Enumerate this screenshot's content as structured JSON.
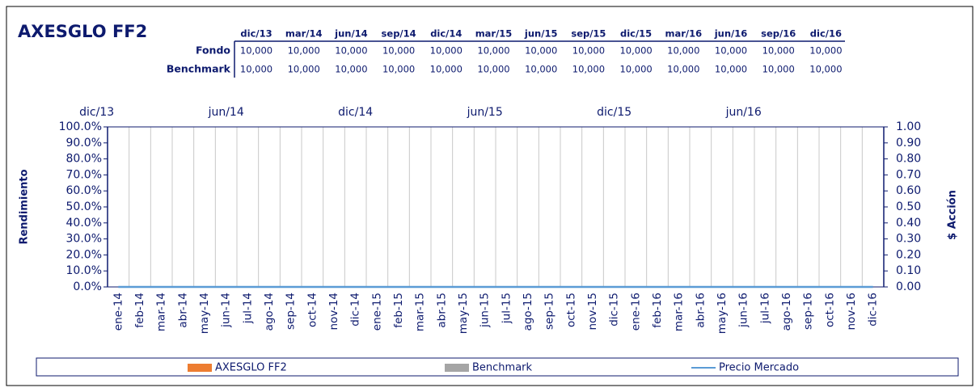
{
  "table": {
    "header": [
      "dic/13",
      "mar/14",
      "jun/14",
      "sep/14",
      "dic/14",
      "mar/15",
      "jun/15",
      "sep/15",
      "dic/15",
      "mar/16",
      "jun/16",
      "sep/16",
      "dic/16"
    ],
    "rows": [
      {
        "label": "Fondo",
        "values": [
          "10,000",
          "10,000",
          "10,000",
          "10,000",
          "10,000",
          "10,000",
          "10,000",
          "10,000",
          "10,000",
          "10,000",
          "10,000",
          "10,000",
          "10,000"
        ]
      },
      {
        "label": "Benchmark",
        "values": [
          "10,000",
          "10,000",
          "10,000",
          "10,000",
          "10,000",
          "10,000",
          "10,000",
          "10,000",
          "10,000",
          "10,000",
          "10,000",
          "10,000",
          "10,000"
        ]
      }
    ]
  },
  "chart_data": {
    "type": "bar",
    "title": "AXESGLO FF2",
    "y_label": "Rendimiento",
    "y2_label": "$ Acción",
    "categories": [
      "ene-14",
      "feb-14",
      "mar-14",
      "abr-14",
      "may-14",
      "jun-14",
      "jul-14",
      "ago-14",
      "sep-14",
      "oct-14",
      "nov-14",
      "dic-14",
      "ene-15",
      "feb-15",
      "mar-15",
      "abr-15",
      "may-15",
      "jun-15",
      "jul-15",
      "ago-15",
      "sep-15",
      "oct-15",
      "nov-15",
      "dic-15",
      "ene-16",
      "feb-16",
      "mar-16",
      "abr-16",
      "may-16",
      "jun-16",
      "jul-16",
      "ago-16",
      "sep-16",
      "oct-16",
      "nov-16",
      "dic-16"
    ],
    "top_categories": [
      "dic/13",
      "jun/14",
      "dic/14",
      "jun/15",
      "dic/15",
      "jun/16"
    ],
    "series": [
      {
        "name": "AXESGLO FF2",
        "color": "#ed7d31",
        "type": "bar",
        "values": [
          0,
          0,
          0,
          0,
          0,
          0,
          0,
          0,
          0,
          0,
          0,
          0,
          0,
          0,
          0,
          0,
          0,
          0,
          0,
          0,
          0,
          0,
          0,
          0,
          0,
          0,
          0,
          0,
          0,
          0,
          0,
          0,
          0,
          0,
          0,
          0
        ]
      },
      {
        "name": "Benchmark",
        "color": "#a5a5a5",
        "type": "bar",
        "values": [
          0,
          0,
          0,
          0,
          0,
          0,
          0,
          0,
          0,
          0,
          0,
          0,
          0,
          0,
          0,
          0,
          0,
          0,
          0,
          0,
          0,
          0,
          0,
          0,
          0,
          0,
          0,
          0,
          0,
          0,
          0,
          0,
          0,
          0,
          0,
          0
        ]
      },
      {
        "name": "Precio Mercado",
        "color": "#5b9bd5",
        "type": "line",
        "axis": "y2",
        "values": [
          0,
          0,
          0,
          0,
          0,
          0,
          0,
          0,
          0,
          0,
          0,
          0,
          0,
          0,
          0,
          0,
          0,
          0,
          0,
          0,
          0,
          0,
          0,
          0,
          0,
          0,
          0,
          0,
          0,
          0,
          0,
          0,
          0,
          0,
          0,
          0
        ]
      }
    ],
    "ylim": [
      0,
      100
    ],
    "yticks": [
      {
        "value": 0,
        "label": "0.0%"
      },
      {
        "value": 10,
        "label": "10.0%"
      },
      {
        "value": 20,
        "label": "20.0%"
      },
      {
        "value": 30,
        "label": "30.0%"
      },
      {
        "value": 40,
        "label": "40.0%"
      },
      {
        "value": 50,
        "label": "50.0%"
      },
      {
        "value": 60,
        "label": "60.0%"
      },
      {
        "value": 70,
        "label": "70.0%"
      },
      {
        "value": 80,
        "label": "80.0%"
      },
      {
        "value": 90,
        "label": "90.0%"
      },
      {
        "value": 100,
        "label": "100.0%"
      }
    ],
    "y2lim": [
      0,
      1
    ],
    "y2ticks": [
      {
        "value": 0,
        "label": "0.00"
      },
      {
        "value": 0.1,
        "label": "0.10"
      },
      {
        "value": 0.2,
        "label": "0.20"
      },
      {
        "value": 0.3,
        "label": "0.30"
      },
      {
        "value": 0.4,
        "label": "0.40"
      },
      {
        "value": 0.5,
        "label": "0.50"
      },
      {
        "value": 0.6,
        "label": "0.60"
      },
      {
        "value": 0.7,
        "label": "0.70"
      },
      {
        "value": 0.8,
        "label": "0.80"
      },
      {
        "value": 0.9,
        "label": "0.90"
      },
      {
        "value": 1,
        "label": "1.00"
      }
    ],
    "grid": true,
    "legend": "bottom"
  }
}
